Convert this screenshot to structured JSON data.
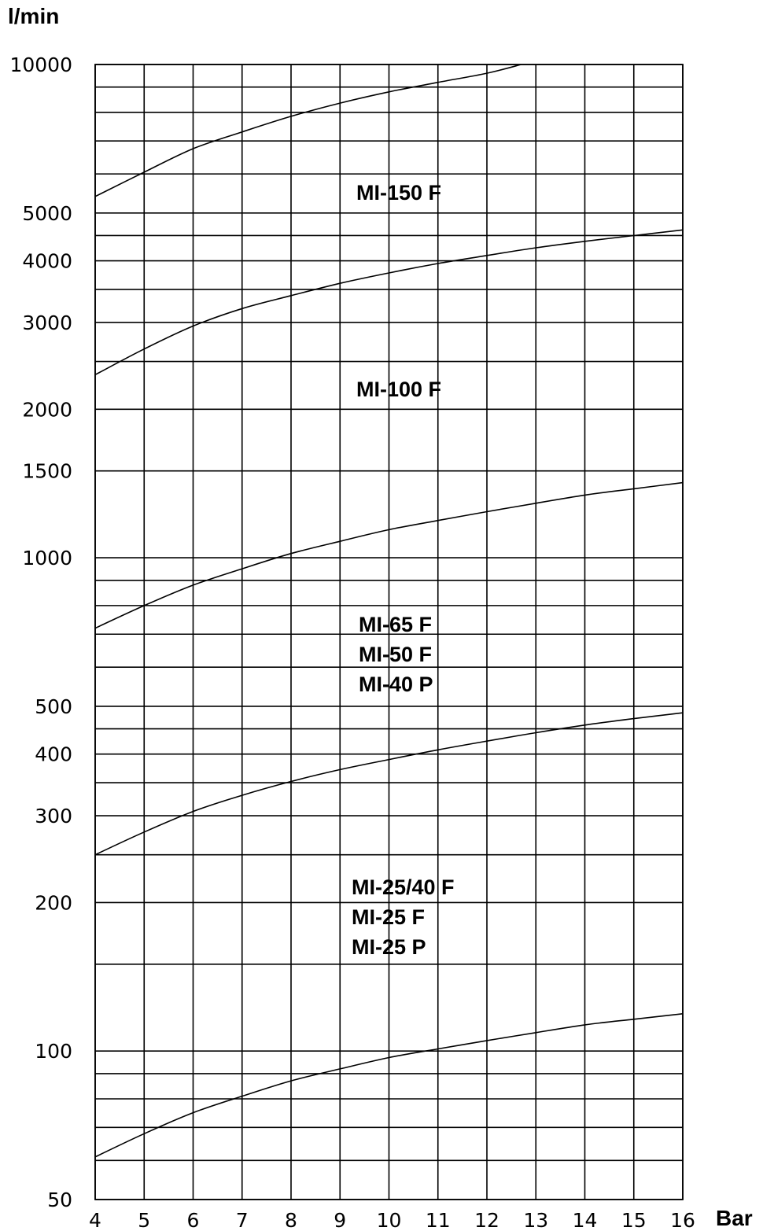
{
  "chart_data": {
    "type": "line",
    "title": "",
    "xlabel": "Bar",
    "ylabel": "l/min",
    "y_scale": "log",
    "xlim": [
      4,
      16
    ],
    "ylim": [
      50,
      10000
    ],
    "grid": true,
    "x_ticks": [
      "4",
      "5",
      "6",
      "7",
      "8",
      "9",
      "10",
      "11",
      "12",
      "13",
      "14",
      "15",
      "16"
    ],
    "y_ticks": [
      {
        "value": 10000,
        "label": "10000"
      },
      {
        "value": 5000,
        "label": "5000"
      },
      {
        "value": 4000,
        "label": "4000"
      },
      {
        "value": 3000,
        "label": "3000"
      },
      {
        "value": 2000,
        "label": "2000"
      },
      {
        "value": 1500,
        "label": "1500"
      },
      {
        "value": 1000,
        "label": "1000"
      },
      {
        "value": 500,
        "label": "500"
      },
      {
        "value": 400,
        "label": "400"
      },
      {
        "value": 300,
        "label": "300"
      },
      {
        "value": 200,
        "label": "200"
      },
      {
        "value": 100,
        "label": "100"
      },
      {
        "value": 50,
        "label": "50"
      }
    ],
    "y_grid_lines": [
      10000,
      9000,
      8000,
      7000,
      6000,
      5000,
      4500,
      4000,
      3500,
      3000,
      2500,
      2000,
      1500,
      1000,
      900,
      800,
      700,
      600,
      500,
      450,
      400,
      350,
      300,
      250,
      200,
      150,
      100,
      90,
      80,
      70,
      60,
      50
    ],
    "series": [
      {
        "labels": [
          "MI-150 F"
        ],
        "points": [
          [
            4,
            5400
          ],
          [
            5,
            6050
          ],
          [
            6,
            6750
          ],
          [
            7,
            7300
          ],
          [
            8,
            7850
          ],
          [
            9,
            8350
          ],
          [
            10,
            8800
          ],
          [
            11,
            9200
          ],
          [
            12,
            9600
          ],
          [
            12.7,
            10000
          ]
        ]
      },
      {
        "labels": [
          "MI-100 F"
        ],
        "points": [
          [
            4,
            2350
          ],
          [
            5,
            2650
          ],
          [
            6,
            2950
          ],
          [
            7,
            3200
          ],
          [
            8,
            3400
          ],
          [
            9,
            3600
          ],
          [
            10,
            3780
          ],
          [
            11,
            3950
          ],
          [
            12,
            4100
          ],
          [
            13,
            4250
          ],
          [
            14,
            4380
          ],
          [
            15,
            4500
          ],
          [
            16,
            4620
          ]
        ]
      },
      {
        "labels": [
          "MI-65 F",
          "MI-50 F",
          "MI-40 P"
        ],
        "points": [
          [
            4,
            720
          ],
          [
            5,
            800
          ],
          [
            6,
            880
          ],
          [
            7,
            950
          ],
          [
            8,
            1020
          ],
          [
            9,
            1080
          ],
          [
            10,
            1140
          ],
          [
            11,
            1190
          ],
          [
            12,
            1240
          ],
          [
            13,
            1290
          ],
          [
            14,
            1340
          ],
          [
            15,
            1380
          ],
          [
            16,
            1420
          ]
        ]
      },
      {
        "labels": [
          "MI-25/40 F",
          "MI-25 F",
          "MI-25 P"
        ],
        "points": [
          [
            4,
            250
          ],
          [
            5,
            278
          ],
          [
            6,
            306
          ],
          [
            7,
            330
          ],
          [
            8,
            352
          ],
          [
            9,
            372
          ],
          [
            10,
            390
          ],
          [
            11,
            408
          ],
          [
            12,
            425
          ],
          [
            13,
            442
          ],
          [
            14,
            458
          ],
          [
            15,
            472
          ],
          [
            16,
            485
          ]
        ]
      },
      {
        "labels": [],
        "points": [
          [
            4,
            61
          ],
          [
            5,
            68
          ],
          [
            6,
            75
          ],
          [
            7,
            81
          ],
          [
            8,
            87
          ],
          [
            9,
            92
          ],
          [
            10,
            97
          ],
          [
            11,
            101
          ],
          [
            12,
            105
          ],
          [
            13,
            109
          ],
          [
            14,
            113
          ],
          [
            15,
            116
          ],
          [
            16,
            119
          ]
        ]
      }
    ]
  }
}
